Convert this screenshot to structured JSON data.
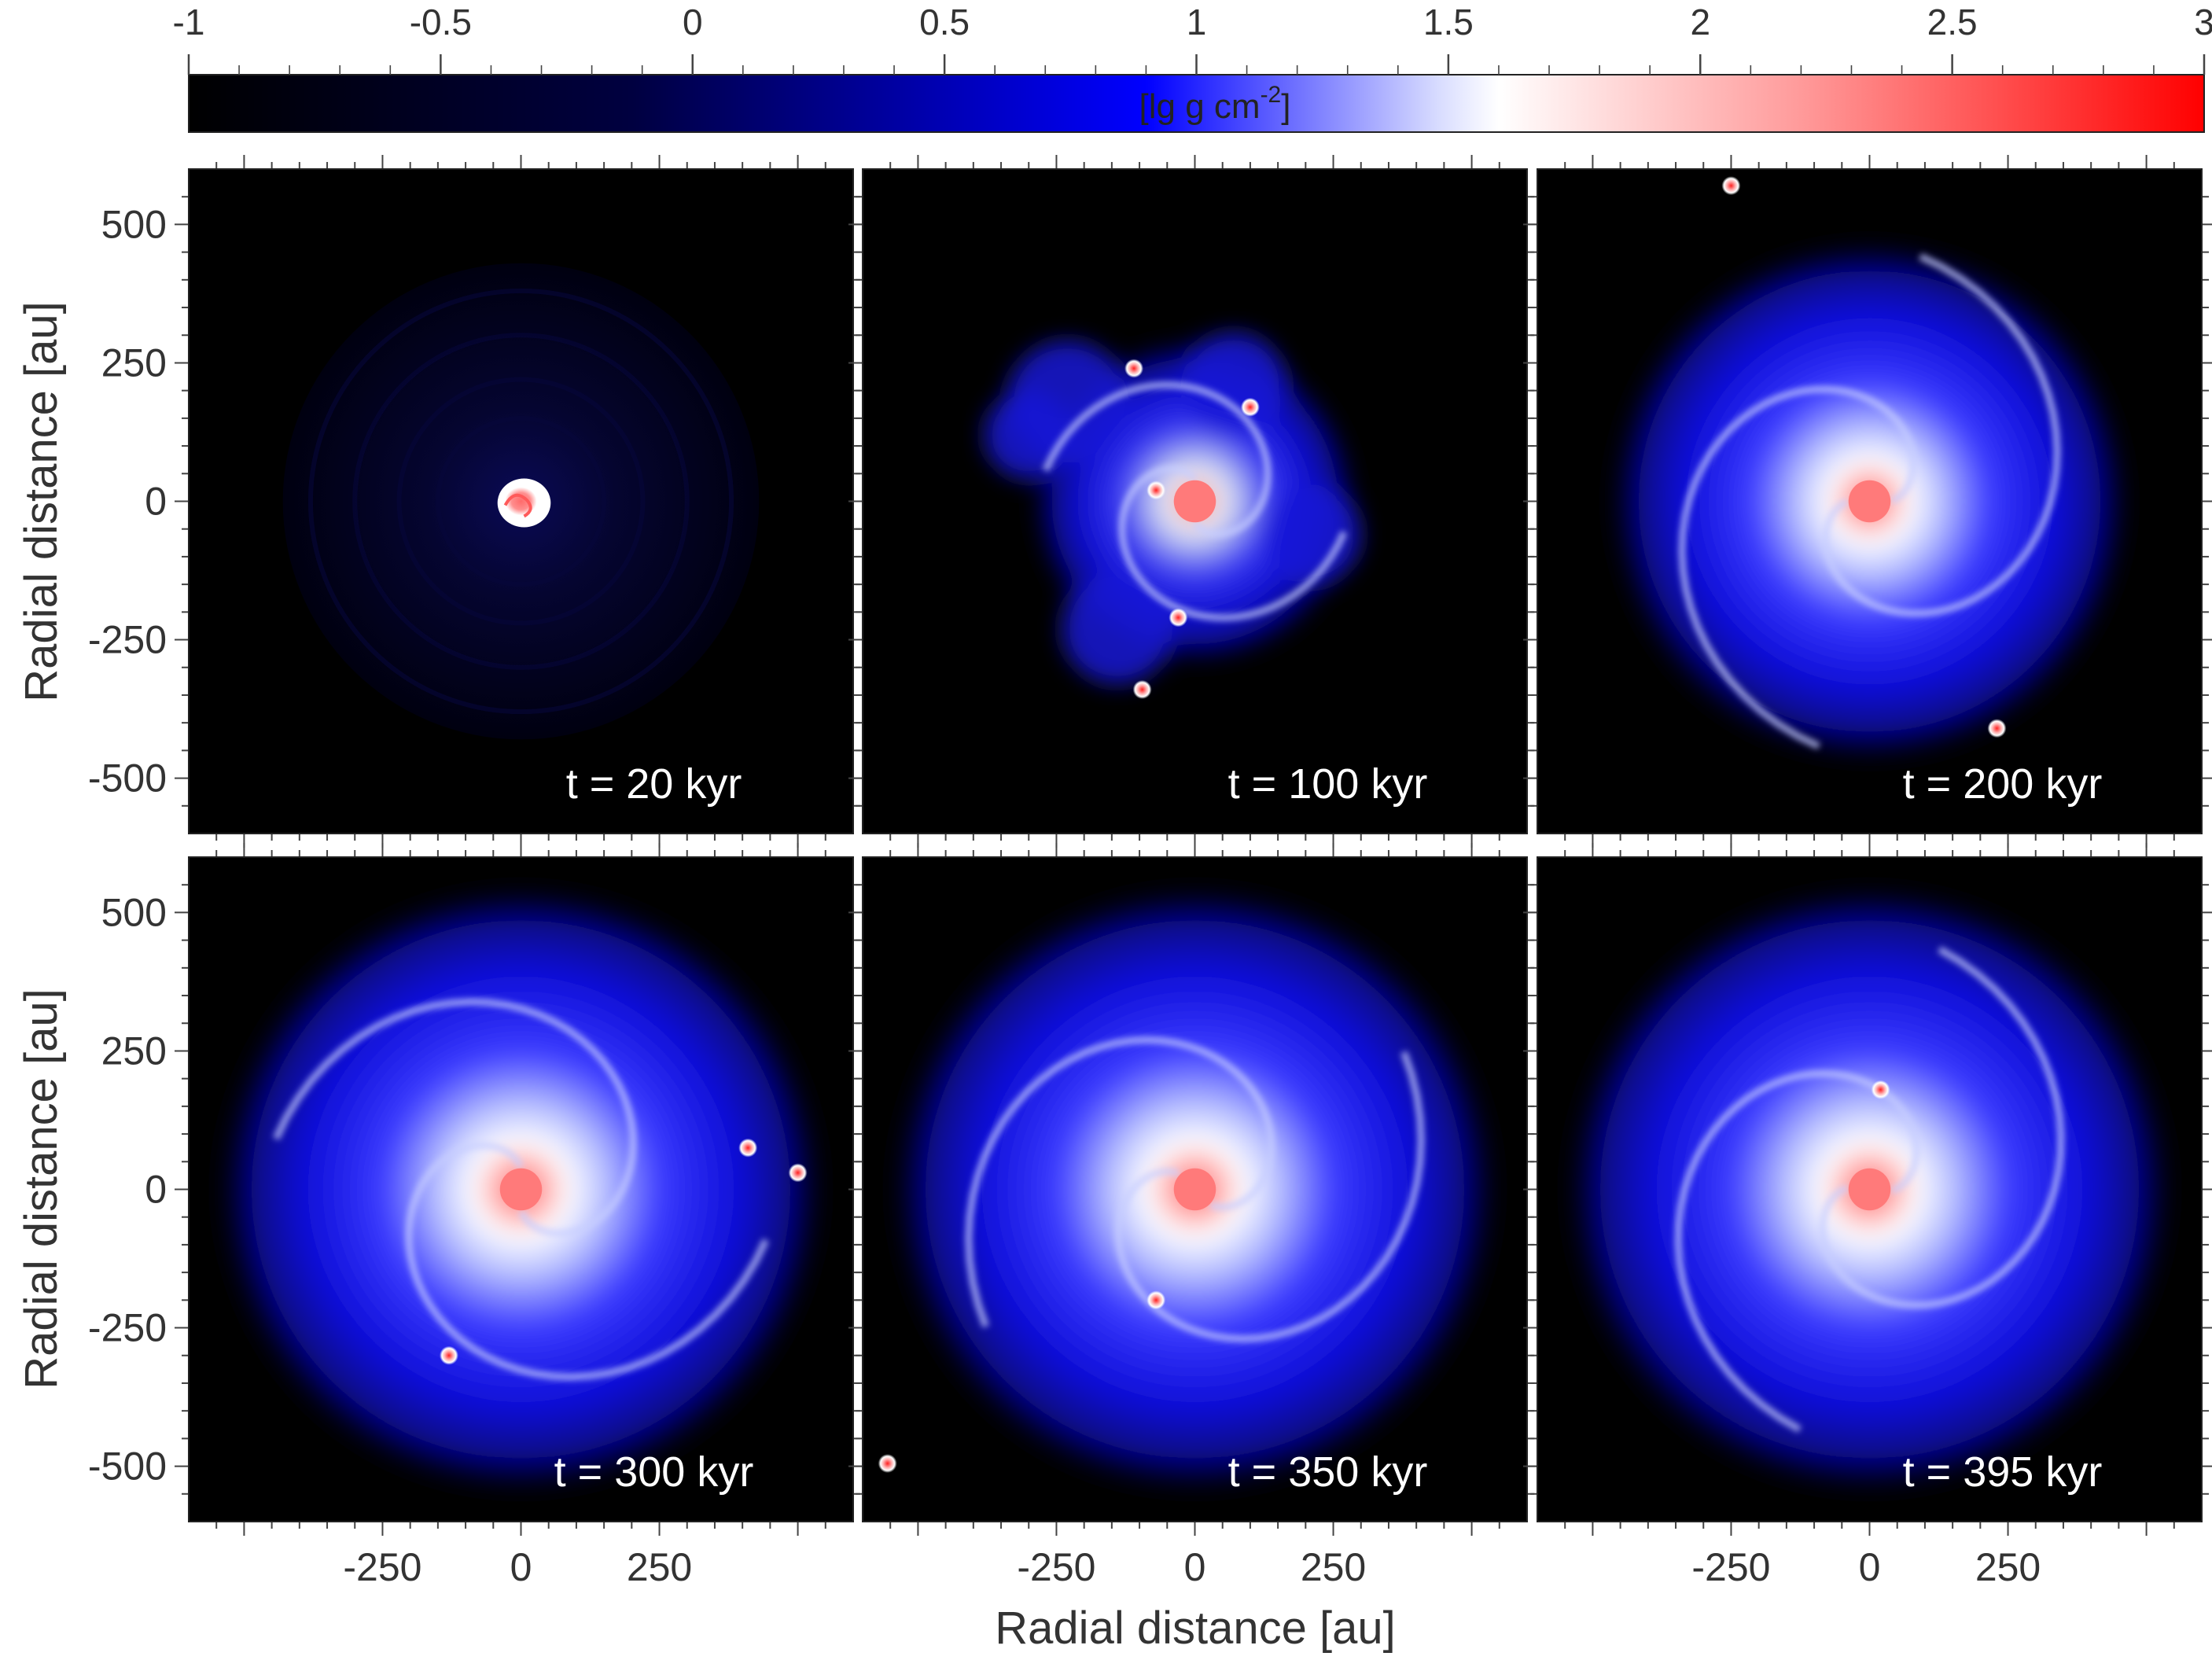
{
  "colorbar": {
    "label": "[lg g cm",
    "label_sup": "-2",
    "label_end": "]",
    "range": [
      -1,
      3
    ],
    "ticks": [
      "-1",
      "-0.5",
      "0",
      "0.5",
      "1",
      "1.5",
      "2",
      "2.5",
      "3"
    ],
    "tick_values": [
      -1,
      -0.5,
      0,
      0.5,
      1,
      1.5,
      2,
      2.5,
      3
    ],
    "colors": [
      "#000000",
      "#0000ff",
      "#ffffff",
      "#ff0000"
    ],
    "color_stops": [
      -1,
      0.9,
      1.6,
      3
    ]
  },
  "chart_data": {
    "type": "heatmap",
    "xlabel": "Radial distance [au]",
    "ylabel": "Radial distance [au]",
    "xlim": [
      -600,
      600
    ],
    "ylim": [
      -600,
      600
    ],
    "x_ticks": [
      "-250",
      "0",
      "250"
    ],
    "x_tick_values": [
      -250,
      0,
      250
    ],
    "y_ticks": [
      "500",
      "250",
      "0",
      "-250",
      "-500"
    ],
    "y_tick_values": [
      500,
      250,
      0,
      -250,
      -500
    ],
    "panels": [
      {
        "label": "t = 20 kyr",
        "time_kyr": 20,
        "stage": "compact"
      },
      {
        "label": "t = 100 kyr",
        "time_kyr": 100,
        "stage": "fragmenting",
        "fragments_au": [
          [
            -110,
            240
          ],
          [
            100,
            170
          ],
          [
            -95,
            -340
          ],
          [
            -30,
            -210
          ],
          [
            -70,
            20
          ]
        ]
      },
      {
        "label": "t = 200 kyr",
        "time_kyr": 200,
        "stage": "extended",
        "fragments_au": [
          [
            230,
            -410
          ],
          [
            -250,
            570
          ]
        ]
      },
      {
        "label": "t = 300 kyr",
        "time_kyr": 300,
        "stage": "extended",
        "fragments_au": [
          [
            410,
            75
          ],
          [
            500,
            30
          ],
          [
            -130,
            -300
          ]
        ]
      },
      {
        "label": "t = 350 kyr",
        "time_kyr": 350,
        "stage": "extended",
        "fragments_au": [
          [
            -70,
            -200
          ],
          [
            -555,
            -495
          ]
        ]
      },
      {
        "label": "t = 395 kyr",
        "time_kyr": 395,
        "stage": "extended",
        "fragments_au": [
          [
            20,
            180
          ]
        ]
      }
    ]
  }
}
